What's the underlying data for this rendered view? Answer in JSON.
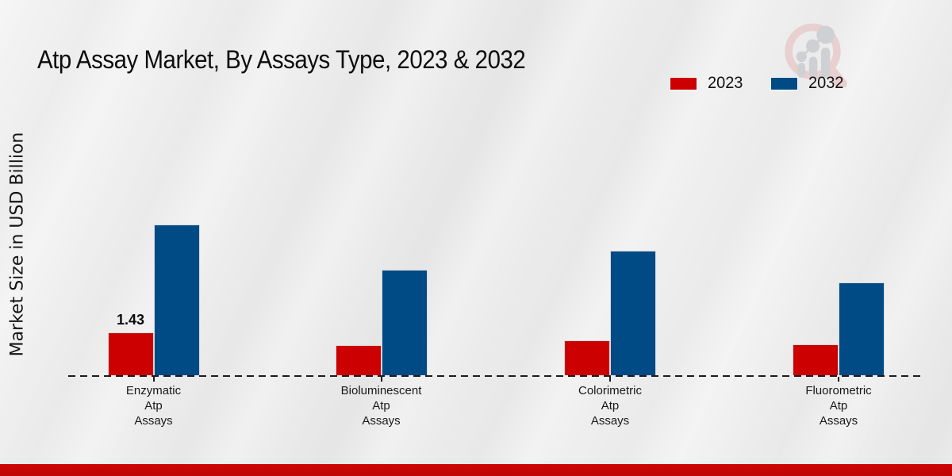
{
  "page": {
    "title": "Atp Assay Market, By Assays Type, 2023 & 2032",
    "y_axis_label": "Market Size in USD Billion"
  },
  "legend": {
    "items": [
      {
        "label": "2023",
        "color": "#cc0000"
      },
      {
        "label": "2032",
        "color": "#004a85"
      }
    ]
  },
  "watermark": {
    "icon": "magnifier-growth-chart-logo"
  },
  "chart_data": {
    "type": "bar",
    "title": "Atp Assay Market, By Assays Type, 2023 & 2032",
    "xlabel": "",
    "ylabel": "Market Size in USD Billion",
    "unit": "USD Billion",
    "categories": [
      "Enzymatic Atp Assays",
      "Bioluminescent Atp Assays",
      "Colorimetric Atp Assays",
      "Fluorometric Atp Assays"
    ],
    "category_lines": [
      [
        "Enzymatic",
        "Atp",
        "Assays"
      ],
      [
        "Bioluminescent",
        "Atp",
        "Assays"
      ],
      [
        "Colorimetric",
        "Atp",
        "Assays"
      ],
      [
        "Fluorometric",
        "Atp",
        "Assays"
      ]
    ],
    "series": [
      {
        "name": "2023",
        "color": "#cc0000",
        "values": [
          1.43,
          1.01,
          1.17,
          1.03
        ],
        "data_labels": [
          "1.43",
          "",
          "",
          ""
        ]
      },
      {
        "name": "2032",
        "color": "#004a85",
        "values": [
          5.03,
          3.52,
          4.16,
          3.1
        ],
        "data_labels": [
          "",
          "",
          "",
          ""
        ]
      }
    ],
    "ylim": [
      0,
      8.8
    ],
    "grid": false,
    "y_axis_visible": false,
    "baseline_style": "dashed",
    "legend_position": "top-right"
  },
  "colors": {
    "background": "#eaeaea",
    "footer_band": "#bd0404",
    "axis_line": "#1c1c1c",
    "text": "#111111",
    "watermark_pink": "#e8cccd",
    "watermark_gray": "#ccced2"
  }
}
